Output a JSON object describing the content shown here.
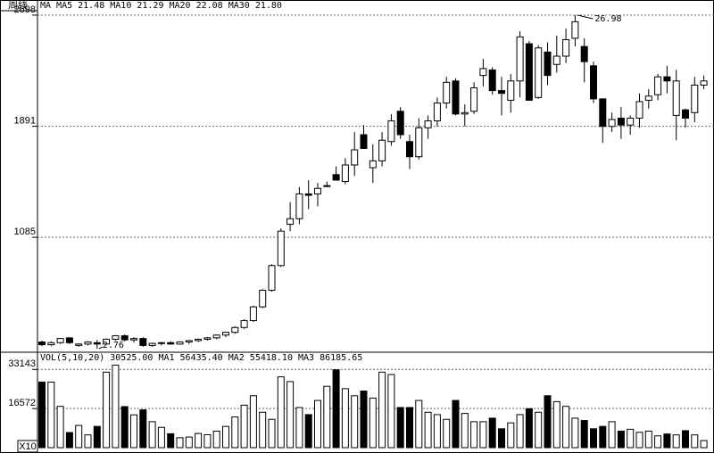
{
  "header": {
    "period": "周线"
  },
  "chart_data": [
    {
      "type": "candlestick",
      "title": "MA MA5 21.48 MA10 21.29 MA20 22.08 MA30 21.80",
      "ylim": [
        2.7,
        27.43
      ],
      "yticks": [
        {
          "value": 10.85,
          "label": "1085"
        },
        {
          "value": 18.91,
          "label": "1891"
        },
        {
          "value": 26.98,
          "label": "2698"
        }
      ],
      "grid": true,
      "ohlc": [
        [
          3.25,
          3.35,
          2.95,
          3.05
        ],
        [
          3.05,
          3.3,
          2.95,
          3.2
        ],
        [
          3.2,
          3.55,
          3.1,
          3.5
        ],
        [
          3.55,
          3.6,
          3.1,
          3.2
        ],
        [
          3.0,
          3.15,
          2.9,
          3.1
        ],
        [
          3.1,
          3.3,
          3.0,
          3.25
        ],
        [
          3.2,
          3.4,
          2.76,
          3.1
        ],
        [
          3.1,
          3.5,
          3.05,
          3.45
        ],
        [
          3.45,
          3.75,
          3.35,
          3.7
        ],
        [
          3.7,
          3.8,
          3.3,
          3.4
        ],
        [
          3.4,
          3.6,
          3.2,
          3.5
        ],
        [
          3.5,
          3.6,
          2.9,
          3.0
        ],
        [
          3.0,
          3.2,
          2.9,
          3.15
        ],
        [
          3.15,
          3.25,
          3.0,
          3.2
        ],
        [
          3.2,
          3.3,
          3.05,
          3.1
        ],
        [
          3.1,
          3.3,
          3.05,
          3.25
        ],
        [
          3.25,
          3.4,
          3.1,
          3.35
        ],
        [
          3.35,
          3.5,
          3.25,
          3.45
        ],
        [
          3.45,
          3.6,
          3.35,
          3.55
        ],
        [
          3.55,
          3.8,
          3.45,
          3.75
        ],
        [
          3.75,
          4.0,
          3.6,
          3.95
        ],
        [
          3.95,
          4.4,
          3.85,
          4.3
        ],
        [
          4.3,
          4.9,
          4.2,
          4.8
        ],
        [
          4.8,
          5.9,
          4.7,
          5.8
        ],
        [
          5.8,
          7.1,
          5.7,
          7.0
        ],
        [
          7.0,
          8.9,
          6.9,
          8.8
        ],
        [
          8.8,
          11.5,
          8.7,
          11.3
        ],
        [
          11.8,
          13.4,
          11.3,
          12.2
        ],
        [
          12.2,
          14.5,
          11.8,
          14.0
        ],
        [
          14.0,
          15.0,
          12.9,
          13.9
        ],
        [
          14.0,
          14.8,
          13.1,
          14.4
        ],
        [
          14.6,
          14.9,
          14.5,
          14.6
        ],
        [
          15.4,
          16.0,
          15.0,
          15.0
        ],
        [
          14.9,
          16.6,
          14.7,
          16.1
        ],
        [
          16.1,
          18.5,
          15.3,
          17.2
        ],
        [
          18.3,
          19.0,
          17.3,
          17.3
        ],
        [
          15.9,
          17.6,
          14.8,
          16.4
        ],
        [
          16.4,
          18.5,
          16.0,
          17.9
        ],
        [
          17.8,
          19.8,
          17.5,
          19.3
        ],
        [
          20.0,
          20.3,
          18.0,
          18.3
        ],
        [
          17.8,
          18.3,
          15.8,
          16.7
        ],
        [
          16.7,
          19.5,
          16.5,
          18.8
        ],
        [
          18.8,
          19.7,
          18.0,
          19.3
        ],
        [
          19.3,
          21.0,
          18.9,
          20.6
        ],
        [
          20.6,
          22.5,
          20.2,
          22.1
        ],
        [
          22.2,
          22.4,
          19.7,
          19.8
        ],
        [
          19.8,
          20.5,
          18.9,
          19.9
        ],
        [
          20.0,
          22.1,
          19.8,
          21.7
        ],
        [
          22.6,
          23.8,
          21.8,
          23.1
        ],
        [
          23.0,
          23.2,
          21.2,
          21.5
        ],
        [
          21.5,
          22.5,
          19.7,
          21.3
        ],
        [
          20.8,
          22.7,
          19.9,
          22.2
        ],
        [
          22.2,
          25.8,
          21.0,
          25.4
        ],
        [
          24.9,
          25.1,
          20.8,
          20.8
        ],
        [
          21.0,
          24.8,
          20.9,
          24.6
        ],
        [
          24.3,
          25.0,
          21.9,
          22.6
        ],
        [
          23.4,
          25.5,
          22.8,
          24.0
        ],
        [
          24.0,
          26.0,
          23.5,
          25.2
        ],
        [
          25.3,
          26.98,
          24.7,
          26.5
        ],
        [
          24.7,
          25.3,
          22.1,
          23.6
        ],
        [
          23.3,
          23.6,
          20.6,
          20.9
        ],
        [
          20.9,
          20.9,
          17.7,
          18.9
        ],
        [
          18.9,
          19.9,
          18.5,
          19.4
        ],
        [
          19.5,
          20.3,
          18.0,
          19.0
        ],
        [
          19.0,
          19.7,
          18.3,
          19.5
        ],
        [
          19.5,
          21.3,
          18.8,
          20.7
        ],
        [
          20.8,
          21.6,
          20.2,
          21.1
        ],
        [
          21.2,
          22.7,
          20.8,
          22.5
        ],
        [
          22.5,
          23.3,
          21.3,
          22.2
        ],
        [
          19.7,
          23.0,
          17.9,
          22.2
        ],
        [
          20.1,
          20.2,
          18.8,
          19.5
        ],
        [
          19.9,
          22.5,
          19.2,
          21.9
        ],
        [
          21.9,
          22.6,
          21.6,
          22.2
        ]
      ]
    },
    {
      "type": "volume",
      "title": "VOL(5,10,20) 30525.00 MA1 56435.40 MA2 55418.10 MA3 86185.65",
      "unit": "X10",
      "ylim": [
        0,
        35900
      ],
      "yticks": [
        16572,
        33143
      ],
      "grid": true,
      "values": [
        27800,
        27800,
        17500,
        6400,
        9400,
        5400,
        9000,
        32000,
        35000,
        17400,
        13900,
        16000,
        11000,
        8600,
        5900,
        4200,
        4500,
        6000,
        5500,
        7000,
        9000,
        13000,
        18000,
        22000,
        15000,
        12000,
        30000,
        28000,
        17000,
        14000,
        20000,
        26000,
        33000,
        25000,
        22000,
        24000,
        21000,
        32000,
        31000,
        17000,
        17000,
        20000,
        15000,
        14000,
        12000,
        20000,
        14500,
        11000,
        11000,
        12500,
        8000,
        10500,
        14000,
        16500,
        15000,
        22000,
        19500,
        17500,
        12500,
        11500,
        8000,
        9000,
        11000,
        7000,
        7800,
        6500,
        7000,
        5000,
        5800,
        5400,
        7200,
        5400,
        3000
      ]
    }
  ]
}
